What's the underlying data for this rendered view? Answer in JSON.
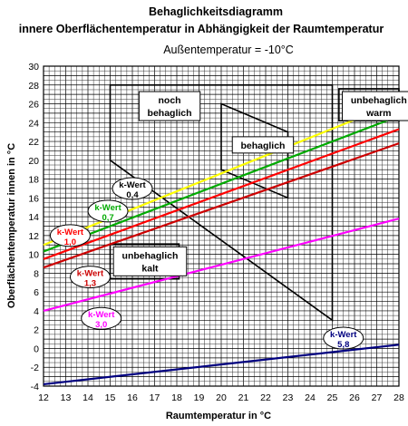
{
  "chart_data": {
    "type": "line",
    "title": "Behaglichkeitsdiagramm",
    "title2": "innere Oberflächentemperatur in Abhängigkeit der Raumtemperatur",
    "subtitle": "Außentemperatur = -10°C",
    "xlabel": "Raumtemperatur in °C",
    "ylabel": "Oberflächentemperatur innen in °C",
    "xlim": [
      12,
      28
    ],
    "ylim": [
      -4,
      30
    ],
    "x_ticks": [
      "12",
      "13",
      "14",
      "15",
      "16",
      "17",
      "18",
      "19",
      "20",
      "21",
      "22",
      "23",
      "24",
      "25",
      "26",
      "27",
      "28"
    ],
    "y_ticks": [
      "-4",
      "-2",
      "0",
      "2",
      "4",
      "6",
      "8",
      "10",
      "12",
      "14",
      "16",
      "18",
      "20",
      "22",
      "24",
      "26",
      "28",
      "30"
    ],
    "grid": true,
    "series": [
      {
        "name": "k-Wert 0,4",
        "label_line1": "k-Wert",
        "label_line2": "0,4",
        "color": "#ffff00",
        "label_color": "#000000",
        "x": [
          12,
          28
        ],
        "y": [
          11.0,
          26.2
        ]
      },
      {
        "name": "k-Wert 0,7",
        "label_line1": "k-Wert",
        "label_line2": "0,7",
        "color": "#00aa00",
        "label_color": "#00aa00",
        "x": [
          12,
          28
        ],
        "y": [
          10.3,
          24.7
        ]
      },
      {
        "name": "k-Wert 1,0",
        "label_line1": "k-Wert",
        "label_line2": "1,0",
        "color": "#ff0000",
        "label_color": "#ff0000",
        "x": [
          12,
          28
        ],
        "y": [
          9.5,
          23.3
        ]
      },
      {
        "name": "k-Wert 1,3",
        "label_line1": "k-Wert",
        "label_line2": "1,3",
        "color": "#cc0000",
        "label_color": "#cc0000",
        "x": [
          12,
          28
        ],
        "y": [
          8.6,
          21.8
        ]
      },
      {
        "name": "k-Wert 3,0",
        "label_line1": "k-Wert",
        "label_line2": "3,0",
        "color": "#ff00ff",
        "label_color": "#ff00ff",
        "x": [
          12,
          28
        ],
        "y": [
          4.0,
          13.8
        ]
      },
      {
        "name": "k-Wert 5,8",
        "label_line1": "k-Wert",
        "label_line2": "5,8",
        "color": "#000080",
        "label_color": "#000080",
        "x": [
          12,
          28
        ],
        "y": [
          -3.8,
          0.4
        ]
      }
    ],
    "label_positions": [
      {
        "x": 16.0,
        "y": 17.0
      },
      {
        "x": 14.9,
        "y": 14.6
      },
      {
        "x": 13.2,
        "y": 12.0
      },
      {
        "x": 14.1,
        "y": 7.6
      },
      {
        "x": 14.6,
        "y": 3.2
      },
      {
        "x": 25.5,
        "y": 1.1
      }
    ],
    "zones": [
      {
        "name": "noch behaglich",
        "line1": "noch",
        "line2": "behaglich",
        "polygon": [
          [
            15,
            28
          ],
          [
            25,
            28
          ],
          [
            25,
            3
          ],
          [
            15,
            20
          ]
        ],
        "label_at": [
          16.3,
          27.3
        ]
      },
      {
        "name": "behaglich",
        "line1": "behaglich",
        "line2": "",
        "polygon": [
          [
            20,
            26
          ],
          [
            23,
            23
          ],
          [
            23,
            16
          ],
          [
            20,
            19
          ]
        ],
        "label_at": [
          20.5,
          22.5
        ]
      },
      {
        "name": "unbehaglich warm",
        "line1": "unbehaglich",
        "line2": "warm",
        "polygon": [
          [
            25.3,
            27.6
          ],
          [
            28,
            27.6
          ],
          [
            28,
            24.2
          ],
          [
            25.3,
            24.2
          ]
        ],
        "label_at": [
          25.45,
          27.3
        ]
      },
      {
        "name": "unbehaglich kalt",
        "line1": "unbehaglich",
        "line2": "kalt",
        "polygon": [
          [
            15,
            11.1
          ],
          [
            18.1,
            11.1
          ],
          [
            18.1,
            7.4
          ],
          [
            15,
            7.4
          ]
        ],
        "label_at": [
          15.15,
          10.8
        ]
      }
    ]
  }
}
